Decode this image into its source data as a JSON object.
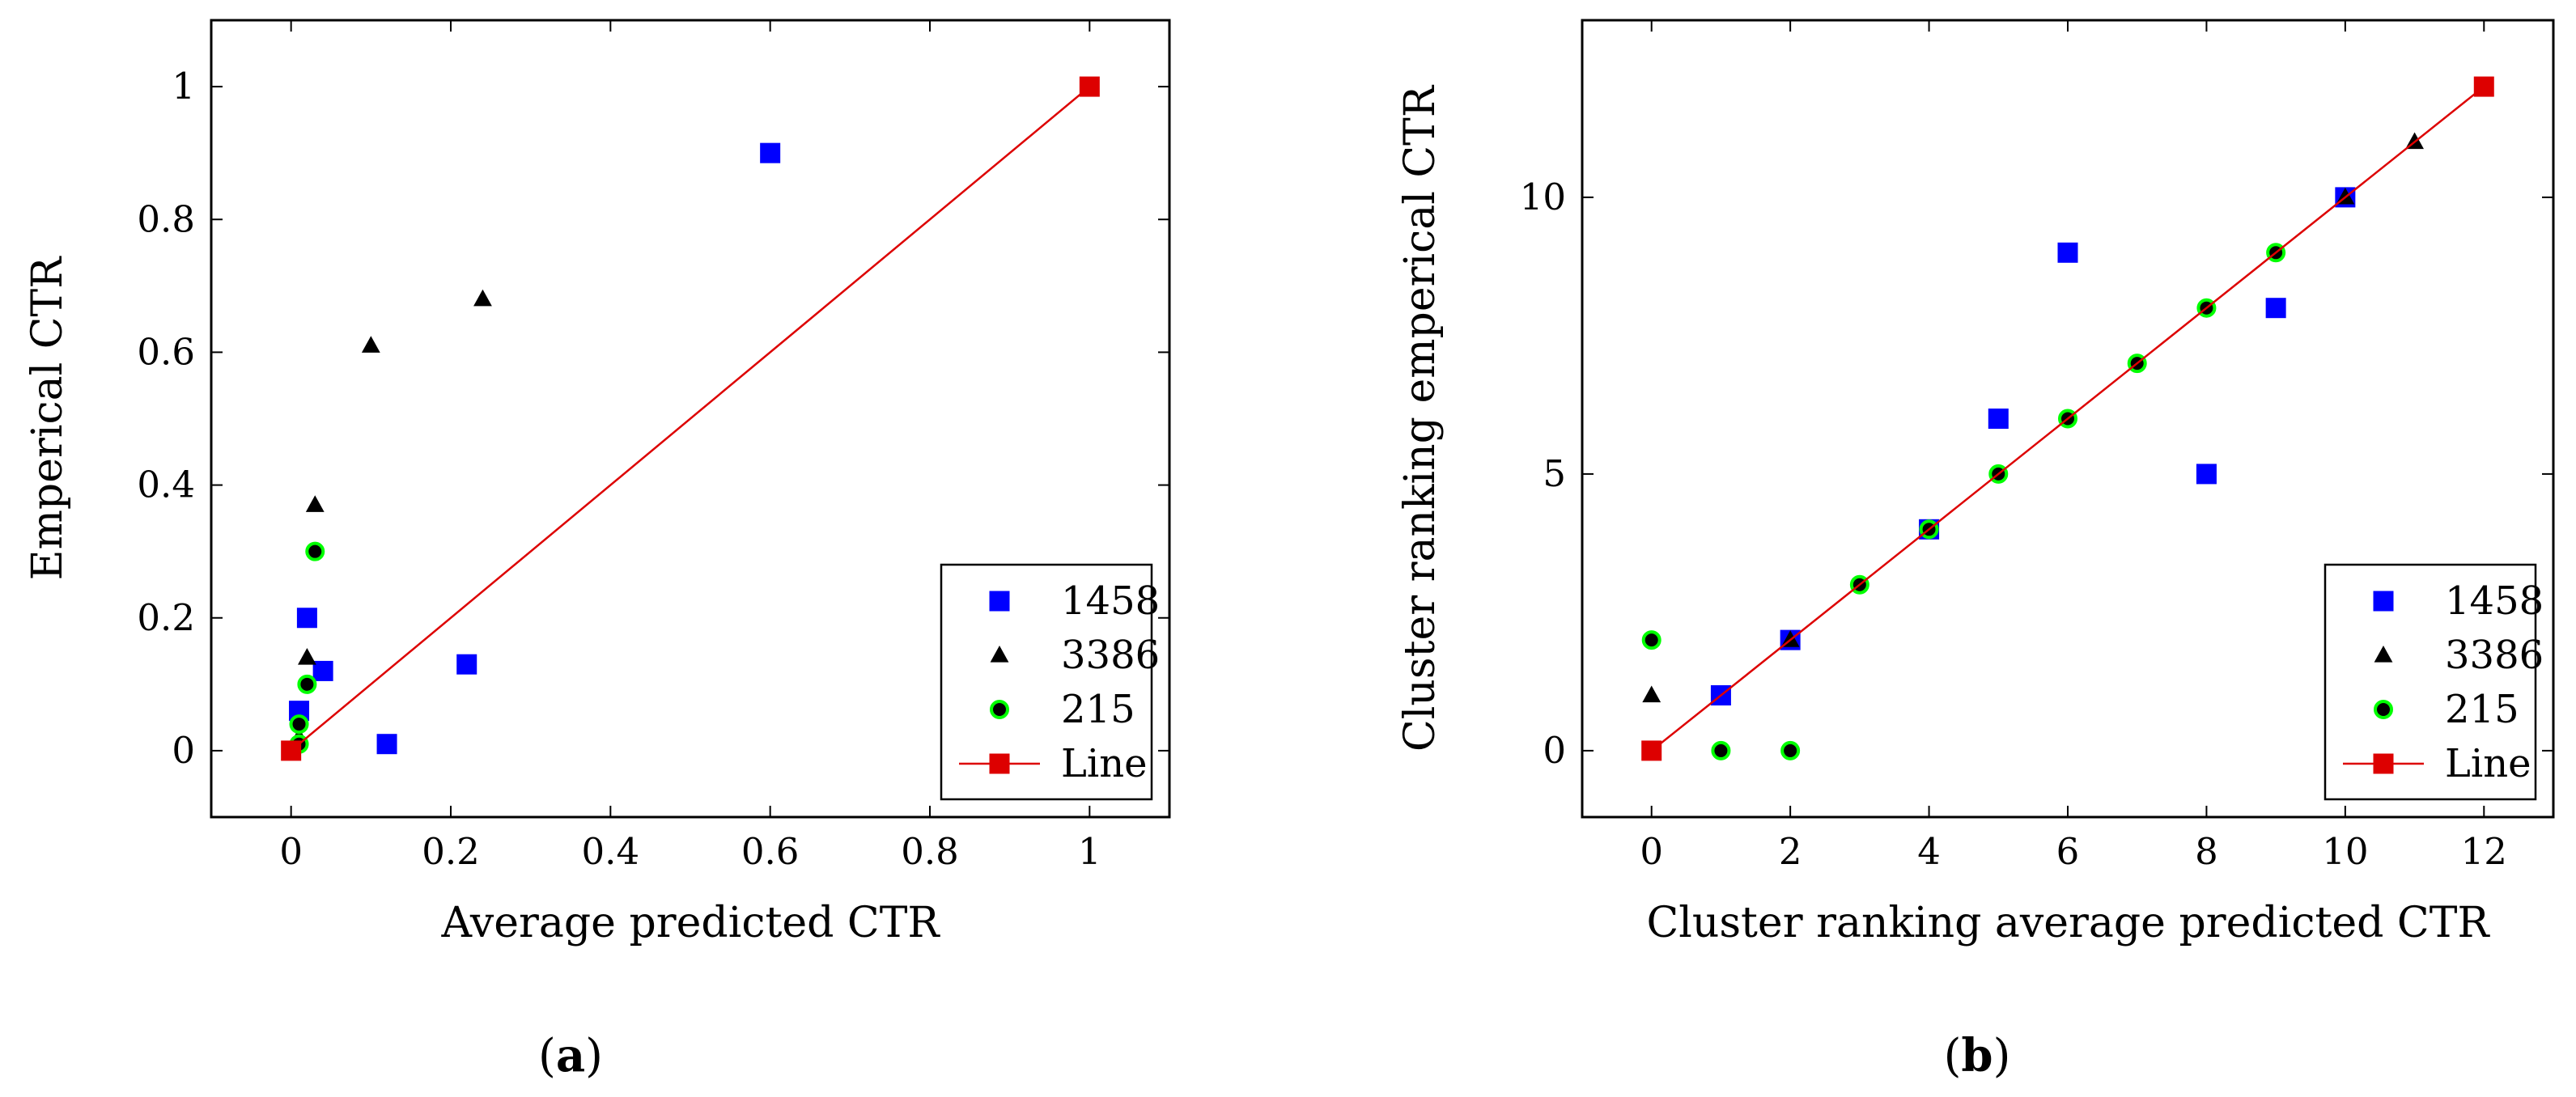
{
  "chart_data": [
    {
      "type": "scatter",
      "panel_label": "a",
      "xlabel": "Average predicted CTR",
      "ylabel": "Emperical CTR",
      "xlim": [
        -0.1,
        1.1
      ],
      "ylim": [
        -0.1,
        1.1
      ],
      "xticks": [
        0,
        0.2,
        0.4,
        0.6,
        0.8,
        1
      ],
      "yticks": [
        0,
        0.2,
        0.4,
        0.6,
        0.8,
        1
      ],
      "xtick_labels": [
        "0",
        "0.2",
        "0.4",
        "0.6",
        "0.8",
        "1"
      ],
      "ytick_labels": [
        "0",
        "0.2",
        "0.4",
        "0.6",
        "0.8",
        "1"
      ],
      "legend_position": "bottom-right",
      "series": [
        {
          "name": "1458",
          "marker": "square",
          "color": "#0000ff",
          "x": [
            0.01,
            0.02,
            0.04,
            0.12,
            0.22,
            0.6
          ],
          "y": [
            0.06,
            0.2,
            0.12,
            0.01,
            0.13,
            0.9
          ]
        },
        {
          "name": "3386",
          "marker": "triangle",
          "color": "#000000",
          "x": [
            0.01,
            0.02,
            0.03,
            0.1,
            0.24
          ],
          "y": [
            0.02,
            0.14,
            0.37,
            0.61,
            0.68
          ]
        },
        {
          "name": "215",
          "marker": "circle",
          "color": "#000000",
          "edge": "#00ff00",
          "x": [
            0.01,
            0.01,
            0.02,
            0.03
          ],
          "y": [
            0.01,
            0.04,
            0.1,
            0.3
          ]
        },
        {
          "name": "Line",
          "marker": "square",
          "color": "#dd0000",
          "line": true,
          "x": [
            0,
            1
          ],
          "y": [
            0,
            1
          ]
        }
      ]
    },
    {
      "type": "scatter",
      "panel_label": "b",
      "xlabel": "Cluster ranking average predicted CTR",
      "ylabel": "Cluster ranking emperical CTR",
      "xlim": [
        -1,
        13
      ],
      "ylim": [
        -1.2,
        13.2
      ],
      "xticks": [
        0,
        2,
        4,
        6,
        8,
        10,
        12
      ],
      "yticks": [
        0,
        5,
        10
      ],
      "xtick_labels": [
        "0",
        "2",
        "4",
        "6",
        "8",
        "10",
        "12"
      ],
      "ytick_labels": [
        "0",
        "5",
        "10"
      ],
      "legend_position": "bottom-right",
      "series": [
        {
          "name": "1458",
          "marker": "square",
          "color": "#0000ff",
          "x": [
            1,
            2,
            4,
            5,
            6,
            8,
            9,
            10
          ],
          "y": [
            1,
            2,
            4,
            6,
            9,
            5,
            8,
            10
          ]
        },
        {
          "name": "3386",
          "marker": "triangle",
          "color": "#000000",
          "x": [
            0,
            2,
            10,
            11
          ],
          "y": [
            1,
            2,
            10,
            11
          ]
        },
        {
          "name": "215",
          "marker": "circle",
          "color": "#000000",
          "edge": "#00ff00",
          "x": [
            0,
            1,
            2,
            3,
            4,
            5,
            6,
            7,
            8,
            9
          ],
          "y": [
            2,
            0,
            0,
            3,
            4,
            5,
            6,
            7,
            8,
            9
          ]
        },
        {
          "name": "Line",
          "marker": "square",
          "color": "#dd0000",
          "line": true,
          "x": [
            0,
            12
          ],
          "y": [
            0,
            12
          ]
        }
      ]
    }
  ]
}
